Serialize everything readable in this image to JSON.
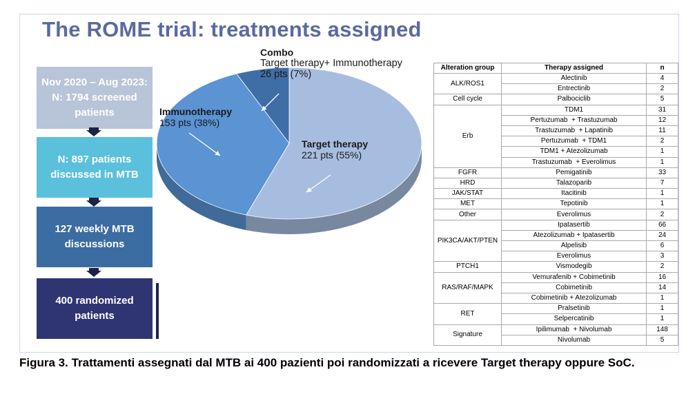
{
  "title": "The ROME trial: treatments assigned",
  "flow": [
    {
      "lines": [
        "Nov 2020 – Aug 2023:",
        "N: 1794 screened",
        "patients"
      ]
    },
    {
      "lines": [
        "N: 897 patients",
        "discussed in MTB"
      ]
    },
    {
      "lines": [
        "127 weekly MTB",
        "discussions"
      ]
    },
    {
      "lines": [
        "400 randomized",
        "patients"
      ]
    }
  ],
  "pie_labels": {
    "combo": {
      "name": "Combo",
      "value": "Target therapy+ Immunotherapy\n26 pts (7%)"
    },
    "immuno": {
      "name": "Immunotherapy",
      "value": "153 pts (38%)"
    },
    "target": {
      "name": "Target therapy",
      "value": "221 pts (55%)"
    }
  },
  "chart_data": [
    {
      "type": "pie",
      "categories": [
        "Target therapy",
        "Immunotherapy",
        "Combo"
      ],
      "values": [
        221,
        153,
        26
      ],
      "percent": [
        55,
        38,
        7
      ],
      "colors": {
        "Target therapy": "#a7bde0",
        "Immunotherapy": "#5b93d3",
        "Combo": "#3f6ea6"
      }
    },
    {
      "type": "table",
      "columns": [
        "Alteration group",
        "Therapy assigned",
        "n"
      ],
      "groups": [
        {
          "group": "ALK/ROS1",
          "rows": [
            [
              "Alectinib",
              "4"
            ],
            [
              "Entrectinib",
              "2"
            ]
          ]
        },
        {
          "group": "Cell cycle",
          "rows": [
            [
              "Palbociclib",
              "5"
            ]
          ]
        },
        {
          "group": "Erb",
          "rows": [
            [
              "TDM1",
              "31"
            ],
            [
              "Pertuzumab  + Trastuzumab",
              "12"
            ],
            [
              "Trastuzumab  + Lapatinib",
              "11"
            ],
            [
              "Pertuzumab  + TDM1",
              "2"
            ],
            [
              "TDM1 + Atezolizumab",
              "1"
            ],
            [
              "Trastuzumab  + Everolimus",
              "1"
            ]
          ]
        },
        {
          "group": "FGFR",
          "rows": [
            [
              "Pemigatinib",
              "33"
            ]
          ]
        },
        {
          "group": "HRD",
          "rows": [
            [
              "Talazoparib",
              "7"
            ]
          ]
        },
        {
          "group": "JAK/STAT",
          "rows": [
            [
              "Itacitinib",
              "1"
            ]
          ]
        },
        {
          "group": "MET",
          "rows": [
            [
              "Tepotinib",
              "1"
            ]
          ]
        },
        {
          "group": "Other",
          "rows": [
            [
              "Everolimus",
              "2"
            ]
          ]
        },
        {
          "group": "PIK3CA/AKT/PTEN",
          "rows": [
            [
              "Ipatasertib",
              "66"
            ],
            [
              "Atezolizumab + Ipatasertib",
              "24"
            ],
            [
              "Alpelisib",
              "6"
            ],
            [
              "Everolimus",
              "3"
            ]
          ]
        },
        {
          "group": "PTCH1",
          "rows": [
            [
              "Vismodegib",
              "2"
            ]
          ]
        },
        {
          "group": "RAS/RAF/MAPK",
          "rows": [
            [
              "Vemurafenib + Cobimetinib",
              "16"
            ],
            [
              "Cobimetinib",
              "14"
            ],
            [
              "Cobimetinib + Atezolizumab",
              "1"
            ]
          ]
        },
        {
          "group": "RET",
          "rows": [
            [
              "Pralsetinib",
              "1"
            ],
            [
              "Selpercatinib",
              "1"
            ]
          ]
        },
        {
          "group": "Signature",
          "rows": [
            [
              "Ipilimumab  + Nivolumab",
              "148"
            ],
            [
              "Nivolumab",
              "5"
            ]
          ]
        }
      ]
    }
  ],
  "caption": "Figura 3. Trattamenti assegnati dal MTB ai 400 pazienti poi randomizzati a ricevere Target therapy oppure SoC."
}
